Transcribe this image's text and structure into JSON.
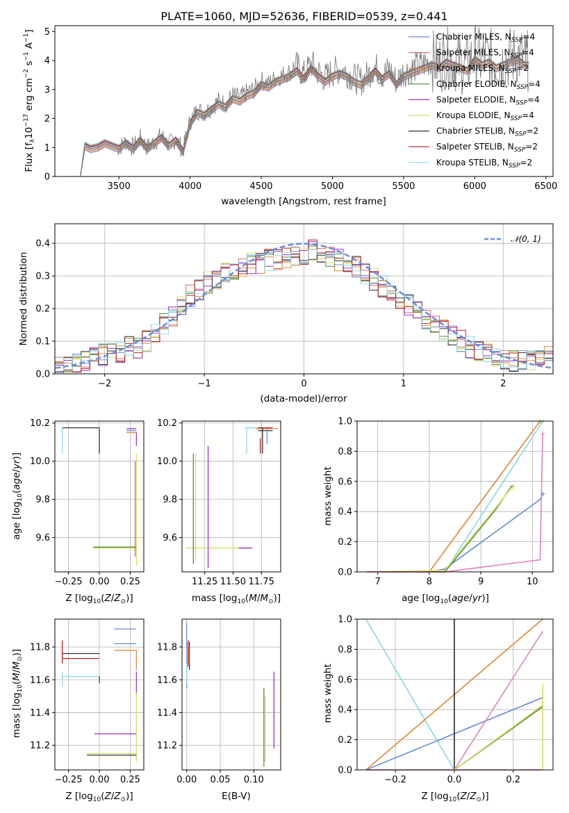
{
  "title": "PLATE=1060, MJD=52636, FIBERID=0539, z=0.441",
  "series_colors": [
    "#6a8cdb",
    "#d66a6a",
    "#e08a3a",
    "#4c8a3c",
    "#9b30c8",
    "#d8e060",
    "#333333",
    "#bb2222",
    "#8cd8e8"
  ],
  "chart_data": [
    {
      "id": "spectrum",
      "type": "line",
      "xlabel": "wavelength [Angstrom, rest frame]",
      "ylabel": "Flux [f_λ 10^-17 erg cm^-2 s^-1 A^-1]",
      "xlim": [
        3050,
        6550
      ],
      "ylim": [
        0,
        5.2
      ],
      "xticks": [
        "3500",
        "4000",
        "4500",
        "5000",
        "5500",
        "6000",
        "6500"
      ],
      "yticks": [
        "0",
        "1",
        "2",
        "3",
        "4",
        "5"
      ],
      "data_color": "#7f7f7f",
      "data_x": [
        3200,
        3230,
        3260,
        3300,
        3350,
        3400,
        3450,
        3500,
        3550,
        3600,
        3650,
        3700,
        3750,
        3800,
        3850,
        3900,
        3950,
        4000,
        4050,
        4100,
        4150,
        4200,
        4250,
        4300,
        4350,
        4400,
        4450,
        4500,
        4550,
        4600,
        4650,
        4700,
        4750,
        4800,
        4850,
        4900,
        4950,
        5000,
        5050,
        5100,
        5150,
        5200,
        5250,
        5300,
        5350,
        5400,
        5450,
        5500,
        5550,
        5600,
        5650,
        5700,
        5750,
        5800,
        5850,
        5900,
        5950,
        6000,
        6050,
        6100,
        6150,
        6200,
        6250,
        6300,
        6350,
        6380
      ],
      "data_y": [
        0,
        0,
        1.1,
        1.0,
        1.05,
        1.2,
        1.1,
        1.0,
        1.2,
        1.0,
        1.3,
        1.0,
        1.2,
        1.4,
        1.1,
        1.3,
        0.9,
        1.9,
        2.3,
        2.2,
        2.4,
        2.6,
        2.5,
        2.8,
        2.7,
        2.9,
        3.0,
        3.3,
        3.2,
        3.4,
        3.5,
        3.6,
        3.8,
        3.5,
        3.9,
        3.6,
        3.4,
        3.6,
        3.7,
        3.6,
        3.4,
        3.3,
        3.5,
        3.8,
        3.5,
        3.7,
        3.3,
        3.6,
        3.7,
        3.8,
        3.9,
        4.0,
        3.9,
        4.1,
        4.0,
        3.9,
        3.8,
        4.2,
        4.0,
        4.1,
        3.9,
        4.0,
        4.1,
        4.2,
        4.0,
        4.0
      ],
      "series": [
        {
          "name": "Chabrier MILES, N_SSP=4"
        },
        {
          "name": "Salpeter MILES, N_SSP=4"
        },
        {
          "name": "Kroupa MILES, N_SSP=2"
        },
        {
          "name": "Chabrier ELODIE, N_SSP=4"
        },
        {
          "name": "Salpeter ELODIE, N_SSP=4"
        },
        {
          "name": "Kroupa ELODIE, N_SSP=4"
        },
        {
          "name": "Chabrier STELIB, N_SSP=2"
        },
        {
          "name": "Salpeter STELIB, N_SSP=2"
        },
        {
          "name": "Kroupa STELIB, N_SSP=2"
        }
      ],
      "legend_position": "top-right"
    },
    {
      "id": "residuals",
      "type": "line",
      "xlabel": "(data-model)/error",
      "ylabel": "Normed distribution",
      "xlim": [
        -2.5,
        2.5
      ],
      "ylim": [
        0,
        0.46
      ],
      "xticks": [
        "−2",
        "−1",
        "0",
        "1",
        "2"
      ],
      "yticks": [
        "0.0",
        "0.1",
        "0.2",
        "0.3",
        "0.4"
      ],
      "grid": true,
      "legend": "𝒩(0, 1)",
      "legend_position": "top-right",
      "hist_base": [
        0.02,
        0.02,
        0.03,
        0.04,
        0.05,
        0.06,
        0.06,
        0.07,
        0.08,
        0.08,
        0.1,
        0.12,
        0.15,
        0.18,
        0.21,
        0.24,
        0.26,
        0.28,
        0.29,
        0.31,
        0.32,
        0.33,
        0.34,
        0.34,
        0.35,
        0.35,
        0.36,
        0.36,
        0.37,
        0.38,
        0.37,
        0.36,
        0.35,
        0.34,
        0.33,
        0.31,
        0.29,
        0.27,
        0.25,
        0.23,
        0.21,
        0.19,
        0.17,
        0.15,
        0.13,
        0.12,
        0.1,
        0.08,
        0.07,
        0.06,
        0.05,
        0.05,
        0.04,
        0.04,
        0.04,
        0.05,
        0.06
      ]
    },
    {
      "id": "age-vs-Z",
      "type": "scatter",
      "xlabel": "Z [log10(Z/Z⊙)]",
      "ylabel": "age  [log10(age/yr)]",
      "xlim": [
        -0.36,
        0.36
      ],
      "ylim": [
        9.42,
        10.21
      ],
      "xticks": [
        "−0.25",
        "0.00",
        "0.25"
      ],
      "yticks": [
        "9.6",
        "9.8",
        "10.0",
        "10.2"
      ],
      "grid": true
    },
    {
      "id": "age-vs-mass",
      "type": "scatter",
      "xlabel": "mass [log10(M/M⊙)]",
      "xlim": [
        11.05,
        11.92
      ],
      "ylim": [
        9.42,
        10.21
      ],
      "xticks": [
        "11.25",
        "11.50",
        "11.75"
      ],
      "yticks": [
        "9.6",
        "9.8",
        "10.0",
        "10.2"
      ],
      "grid": true
    },
    {
      "id": "weight-vs-age",
      "type": "line",
      "xlabel": "age  [log10(age/yr)]",
      "ylabel": "mass weight",
      "xlim": [
        6.6,
        10.4
      ],
      "ylim": [
        0,
        1.0
      ],
      "xticks": [
        "7",
        "8",
        "9",
        "10"
      ],
      "yticks": [
        "0.0",
        "0.2",
        "0.4",
        "0.6",
        "0.8",
        "1.0"
      ],
      "grid": true
    },
    {
      "id": "mass-vs-Z",
      "type": "scatter",
      "xlabel": "Z [log10(Z/Z⊙)]",
      "ylabel": "mass [log10(M/M⊙)]",
      "xlim": [
        -0.36,
        0.36
      ],
      "ylim": [
        11.05,
        11.97
      ],
      "xticks": [
        "−0.25",
        "0.00",
        "0.25"
      ],
      "yticks": [
        "11.2",
        "11.4",
        "11.6",
        "11.8"
      ],
      "grid": true
    },
    {
      "id": "mass-vs-EBV",
      "type": "scatter",
      "xlabel": "E(B-V)",
      "xlim": [
        -0.007,
        0.14
      ],
      "ylim": [
        11.05,
        11.97
      ],
      "xticks": [
        "0.00",
        "0.05",
        "0.10"
      ],
      "yticks": [
        "11.2",
        "11.4",
        "11.6",
        "11.8"
      ],
      "grid": true
    },
    {
      "id": "weight-vs-Z",
      "type": "line",
      "xlabel": "Z [log10(Z/Z⊙)]",
      "ylabel": "mass weight",
      "xlim": [
        -0.33,
        0.335
      ],
      "ylim": [
        0,
        1.0
      ],
      "xticks": [
        "−0.2",
        "0.0",
        "0.2"
      ],
      "yticks": [
        "0.0",
        "0.2",
        "0.4",
        "0.6",
        "0.8",
        "1.0"
      ],
      "grid": true
    }
  ]
}
